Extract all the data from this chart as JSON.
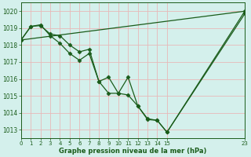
{
  "line1_x": [
    0,
    1,
    2,
    3,
    4,
    5,
    6,
    7,
    8,
    9,
    10,
    11,
    12,
    13,
    14,
    15,
    23
  ],
  "line1_y": [
    1018.3,
    1019.1,
    1019.15,
    1018.65,
    1018.55,
    1018.0,
    1017.6,
    1017.75,
    1015.85,
    1016.1,
    1015.15,
    1016.1,
    1014.4,
    1013.65,
    1013.55,
    1012.85,
    1020.0
  ],
  "line2_x": [
    0,
    1,
    2,
    3,
    4,
    5,
    6,
    7,
    8,
    9,
    10,
    11,
    12,
    13,
    14,
    15,
    23
  ],
  "line2_y": [
    1018.3,
    1019.1,
    1019.2,
    1018.55,
    1018.1,
    1017.5,
    1017.1,
    1017.5,
    1015.85,
    1015.15,
    1015.15,
    1015.05,
    1014.4,
    1013.6,
    1013.55,
    1012.85,
    1019.85
  ],
  "line3_x": [
    0,
    23
  ],
  "line3_y": [
    1018.3,
    1020.0
  ],
  "xlim": [
    0,
    23
  ],
  "ylim": [
    1012.5,
    1020.5
  ],
  "yticks": [
    1013,
    1014,
    1015,
    1016,
    1017,
    1018,
    1019,
    1020
  ],
  "xticks": [
    0,
    1,
    2,
    3,
    4,
    5,
    6,
    7,
    8,
    9,
    10,
    11,
    12,
    13,
    14,
    15,
    23
  ],
  "xtick_labels": [
    "0",
    "1",
    "2",
    "3",
    "4",
    "5",
    "6",
    "7",
    "8",
    "9",
    "10",
    "11",
    "12",
    "13",
    "14",
    "15",
    "23"
  ],
  "xlabel": "Graphe pression niveau de la mer (hPa)",
  "line_color": "#1a5c1a",
  "marker": "D",
  "bg_color": "#d4f0ec",
  "grid_color": "#e8b8b8",
  "label_color": "#1a5c1a",
  "figsize": [
    3.2,
    2.0
  ],
  "dpi": 100
}
